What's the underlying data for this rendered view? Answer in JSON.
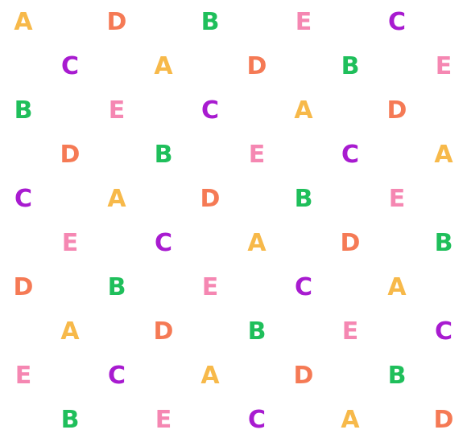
{
  "colors": {
    "A": "#F7B94A",
    "B": "#1FBF5B",
    "C": "#A81BD0",
    "D": "#F57A55",
    "E": "#F587B2"
  },
  "rows": [
    [
      "A",
      "D",
      "B",
      "E",
      "C"
    ],
    [
      "C",
      "A",
      "D",
      "B",
      "E"
    ],
    [
      "B",
      "E",
      "C",
      "A",
      "D"
    ],
    [
      "D",
      "B",
      "E",
      "C",
      "A"
    ],
    [
      "C",
      "A",
      "D",
      "B",
      "E"
    ],
    [
      "E",
      "C",
      "A",
      "D",
      "B"
    ],
    [
      "D",
      "B",
      "E",
      "C",
      "A"
    ],
    [
      "A",
      "D",
      "B",
      "E",
      "C"
    ],
    [
      "E",
      "C",
      "A",
      "D",
      "B"
    ],
    [
      "B",
      "E",
      "C",
      "A",
      "D"
    ]
  ]
}
